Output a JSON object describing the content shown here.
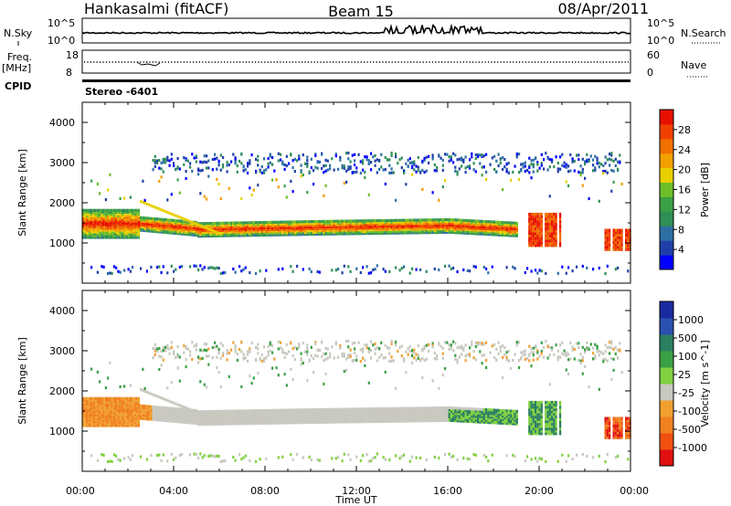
{
  "header": {
    "station": "Hankasalmi (fitACF)",
    "beam": "Beam 15",
    "date": "08/Apr/2011"
  },
  "summary": {
    "nsky_label": "N.Sky",
    "nsearch_label": "N.Search",
    "noise_ticks": [
      "10^5",
      "10^0"
    ],
    "freq_label": "Freq.",
    "freq_unit": "[MHz]",
    "freq_ticks": [
      "18",
      "8"
    ],
    "nave_label": "Nave",
    "nave_ticks": [
      "60",
      "0"
    ],
    "cpid_label": "CPID",
    "cpid_value": "Stereo -6401"
  },
  "colors": {
    "power": [
      "#0000ff",
      "#1f3fa8",
      "#2d6ea3",
      "#2f8f56",
      "#3aa046",
      "#6ebe2a",
      "#e8d000",
      "#f2a000",
      "#f07000",
      "#f04000",
      "#e81000"
    ],
    "velocity": [
      "#1a2aa0",
      "#2a50b0",
      "#2a8060",
      "#3aa045",
      "#80d040",
      "#c8c8c0",
      "#f0a030",
      "#f08020",
      "#f05010",
      "#e01010"
    ]
  },
  "chart_data": [
    {
      "type": "heatmap",
      "title": "",
      "xlabel": "Time UT",
      "ylabel": "Slant Range [km]",
      "x_ticks": [
        "00:00",
        "04:00",
        "08:00",
        "12:00",
        "16:00",
        "20:00",
        "00:00"
      ],
      "y_ticks": [
        1000,
        2000,
        3000,
        4000
      ],
      "ylim": [
        0,
        4500
      ],
      "colorbar": {
        "label": "Power [dB]",
        "ticks": [
          "28",
          "24",
          "20",
          "16",
          "12",
          "8",
          "4"
        ]
      }
    },
    {
      "type": "heatmap",
      "title": "",
      "xlabel": "Time UT",
      "ylabel": "Slant Range [km]",
      "x_ticks": [
        "00:00",
        "04:00",
        "08:00",
        "12:00",
        "16:00",
        "20:00",
        "00:00"
      ],
      "y_ticks": [
        1000,
        2000,
        3000,
        4000
      ],
      "ylim": [
        0,
        4500
      ],
      "colorbar": {
        "label": "Velocity [m s^-1]",
        "ticks": [
          "1000",
          "500",
          "100",
          "25",
          "-25",
          "-100",
          "-500",
          "-1000"
        ]
      }
    }
  ]
}
